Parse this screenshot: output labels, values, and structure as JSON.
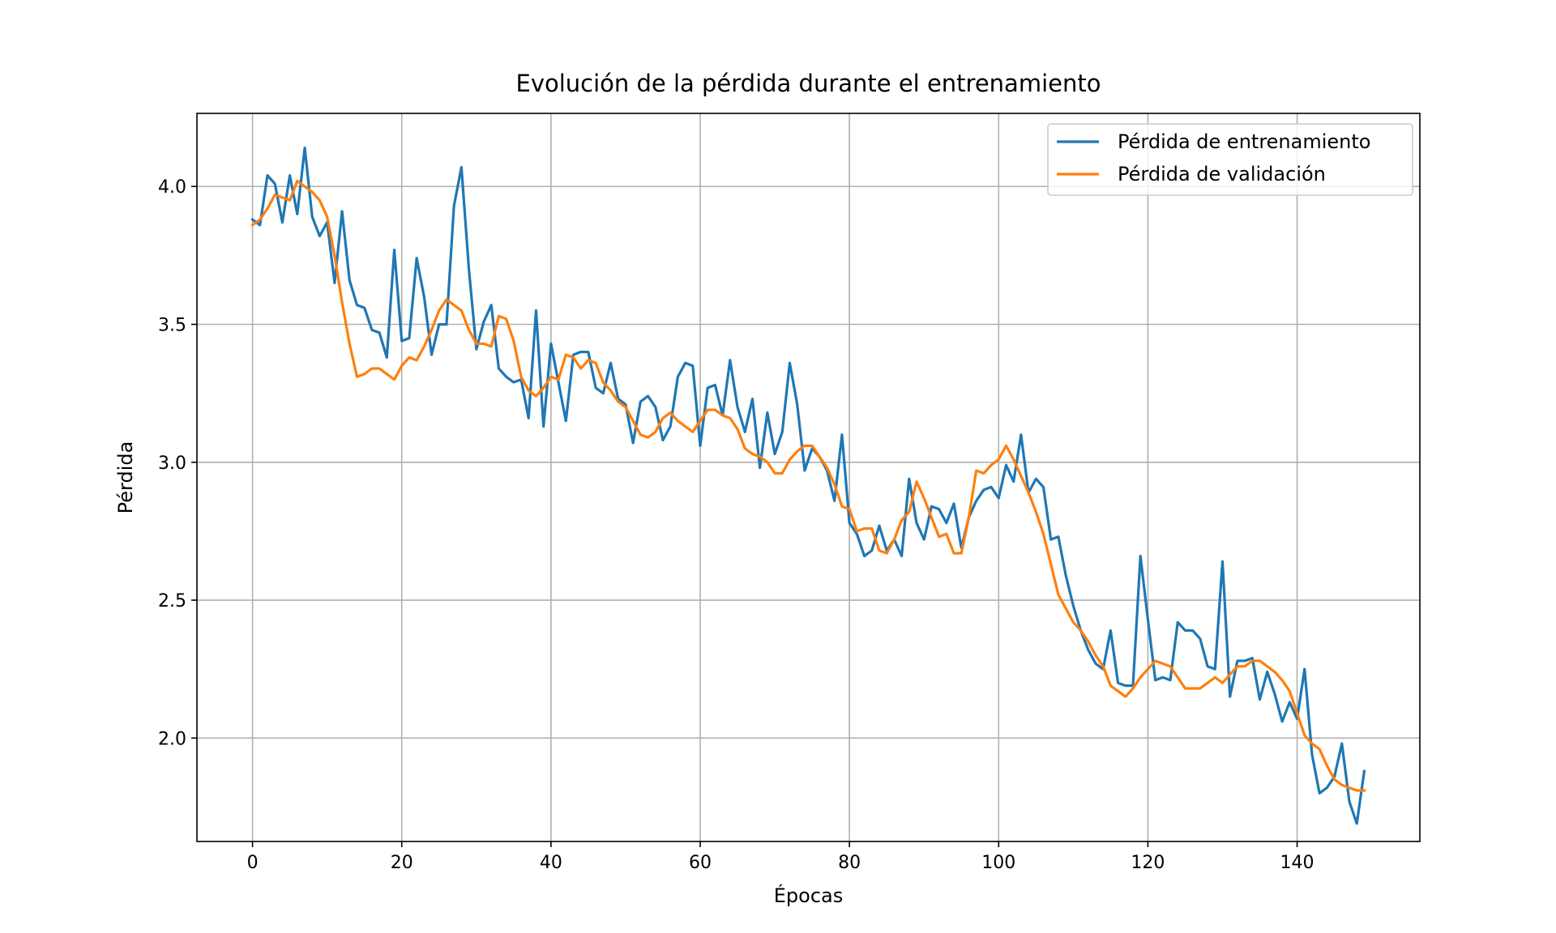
{
  "chart_data": {
    "type": "line",
    "title": "Evolución de la pérdida durante el entrenamiento",
    "xlabel": "Épocas",
    "ylabel": "Pérdida",
    "xlim": [
      -7.45,
      156.45
    ],
    "ylim": [
      1.625,
      4.265
    ],
    "xticks": [
      0,
      20,
      40,
      60,
      80,
      100,
      120,
      140
    ],
    "yticks": [
      2.0,
      2.5,
      3.0,
      3.5,
      4.0
    ],
    "ytick_labels": [
      "2.0",
      "2.5",
      "3.0",
      "3.5",
      "4.0"
    ],
    "grid": true,
    "legend_position": "upper right",
    "series": [
      {
        "name": "Pérdida de entrenamiento",
        "color": "#1f77b4",
        "values": [
          3.88,
          3.86,
          4.04,
          4.01,
          3.87,
          4.04,
          3.9,
          4.14,
          3.89,
          3.82,
          3.87,
          3.65,
          3.91,
          3.66,
          3.57,
          3.56,
          3.48,
          3.47,
          3.38,
          3.77,
          3.44,
          3.45,
          3.74,
          3.6,
          3.39,
          3.5,
          3.5,
          3.93,
          4.07,
          3.7,
          3.41,
          3.51,
          3.57,
          3.34,
          3.31,
          3.29,
          3.3,
          3.16,
          3.55,
          3.13,
          3.43,
          3.29,
          3.15,
          3.39,
          3.4,
          3.4,
          3.27,
          3.25,
          3.36,
          3.23,
          3.21,
          3.07,
          3.22,
          3.24,
          3.2,
          3.08,
          3.13,
          3.31,
          3.36,
          3.35,
          3.06,
          3.27,
          3.28,
          3.17,
          3.37,
          3.2,
          3.11,
          3.23,
          2.98,
          3.18,
          3.03,
          3.11,
          3.36,
          3.21,
          2.97,
          3.05,
          3.02,
          2.97,
          2.86,
          3.1,
          2.78,
          2.74,
          2.66,
          2.68,
          2.77,
          2.68,
          2.72,
          2.66,
          2.94,
          2.78,
          2.72,
          2.84,
          2.83,
          2.78,
          2.85,
          2.69,
          2.8,
          2.86,
          2.9,
          2.91,
          2.87,
          2.99,
          2.93,
          3.1,
          2.89,
          2.94,
          2.91,
          2.72,
          2.73,
          2.59,
          2.48,
          2.39,
          2.32,
          2.27,
          2.25,
          2.39,
          2.2,
          2.19,
          2.19,
          2.66,
          2.43,
          2.21,
          2.22,
          2.21,
          2.42,
          2.39,
          2.39,
          2.36,
          2.26,
          2.25,
          2.64,
          2.15,
          2.28,
          2.28,
          2.29,
          2.14,
          2.24,
          2.16,
          2.06,
          2.13,
          2.07,
          2.25,
          1.94,
          1.8,
          1.82,
          1.86,
          1.98,
          1.77,
          1.69,
          1.88
        ]
      },
      {
        "name": "Pérdida de validación",
        "color": "#ff7f0e",
        "values": [
          3.86,
          3.88,
          3.92,
          3.97,
          3.96,
          3.95,
          4.02,
          4.0,
          3.98,
          3.95,
          3.89,
          3.75,
          3.58,
          3.43,
          3.31,
          3.32,
          3.34,
          3.34,
          3.32,
          3.3,
          3.35,
          3.38,
          3.37,
          3.42,
          3.48,
          3.55,
          3.59,
          3.57,
          3.55,
          3.48,
          3.43,
          3.43,
          3.42,
          3.53,
          3.52,
          3.44,
          3.31,
          3.26,
          3.24,
          3.27,
          3.31,
          3.3,
          3.39,
          3.38,
          3.34,
          3.37,
          3.36,
          3.29,
          3.26,
          3.22,
          3.2,
          3.15,
          3.1,
          3.09,
          3.11,
          3.16,
          3.18,
          3.15,
          3.13,
          3.11,
          3.15,
          3.19,
          3.19,
          3.17,
          3.16,
          3.12,
          3.05,
          3.03,
          3.02,
          3.0,
          2.96,
          2.96,
          3.01,
          3.04,
          3.06,
          3.06,
          3.02,
          2.98,
          2.92,
          2.84,
          2.83,
          2.75,
          2.76,
          2.76,
          2.68,
          2.67,
          2.72,
          2.79,
          2.82,
          2.93,
          2.87,
          2.8,
          2.73,
          2.74,
          2.67,
          2.67,
          2.8,
          2.97,
          2.96,
          2.99,
          3.01,
          3.06,
          3.01,
          2.95,
          2.89,
          2.82,
          2.74,
          2.63,
          2.52,
          2.47,
          2.42,
          2.39,
          2.35,
          2.3,
          2.26,
          2.19,
          2.17,
          2.15,
          2.18,
          2.22,
          2.25,
          2.28,
          2.27,
          2.26,
          2.22,
          2.18,
          2.18,
          2.18,
          2.2,
          2.22,
          2.2,
          2.23,
          2.26,
          2.26,
          2.28,
          2.28,
          2.26,
          2.24,
          2.21,
          2.17,
          2.09,
          2.01,
          1.98,
          1.96,
          1.9,
          1.85,
          1.83,
          1.82,
          1.81,
          1.81
        ]
      }
    ]
  }
}
